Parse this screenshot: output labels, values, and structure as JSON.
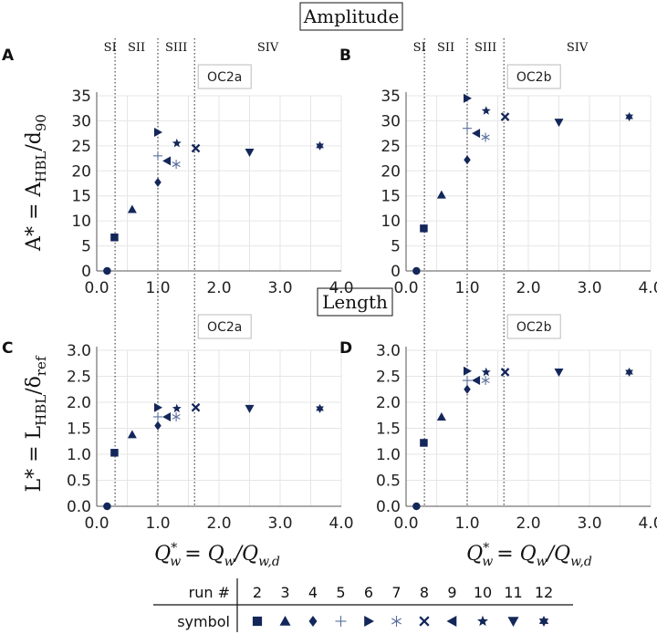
{
  "sections": {
    "amplitude": "Amplitude",
    "length": "Length"
  },
  "stage_labels": [
    "SI",
    "SII",
    "SIII",
    "SIV"
  ],
  "stage_boundaries": [
    0.3,
    1.0,
    1.6
  ],
  "colors": {
    "marker": "#14275a",
    "light_marker": "#5a6e9c",
    "grid": "#e6e6e6"
  },
  "ylabels": {
    "top_main": "A* = A",
    "top_sub": "HBL",
    "top_tail": "/d",
    "top_sub2": "90",
    "bottom_main": "L* = L",
    "bottom_sub": "HBL",
    "bottom_tail": "/δ",
    "bottom_sub2": "ref"
  },
  "xlabel": {
    "lhs": "Q",
    "lhs_sup": "*",
    "lhs_sub": "w",
    "rhs": "= Q",
    "rhs_sub": "w",
    "rhs2": "/Q",
    "rhs2_sub": "w,d"
  },
  "legend": {
    "run_label": "run #",
    "symbol_label": "symbol",
    "runs": [
      "2",
      "3",
      "4",
      "5",
      "6",
      "7",
      "8",
      "9",
      "10",
      "11",
      "12"
    ],
    "symbols": [
      "square",
      "triangle-up",
      "diamond",
      "plus",
      "triangle-right",
      "asterisk",
      "x",
      "triangle-left",
      "star",
      "triangle-down",
      "star6"
    ]
  },
  "chart_data": [
    {
      "panel": "A",
      "case": "OC2a",
      "type": "scatter",
      "xlim": [
        0.0,
        4.0
      ],
      "ylim": [
        0,
        35
      ],
      "xticks": [
        "0.0",
        "1.0",
        "2.0",
        "3.0",
        "4.0"
      ],
      "yticks": [
        "0",
        "5",
        "10",
        "15",
        "20",
        "25",
        "30",
        "35"
      ],
      "ytick_values": [
        0,
        5,
        10,
        15,
        20,
        25,
        30,
        35
      ],
      "points": [
        {
          "run": "1",
          "symbol": "circle",
          "x": 0.17,
          "y": 0.0
        },
        {
          "run": "2",
          "symbol": "square",
          "x": 0.29,
          "y": 6.7
        },
        {
          "run": "3",
          "symbol": "triangle-up",
          "x": 0.58,
          "y": 12.3
        },
        {
          "run": "4",
          "symbol": "diamond",
          "x": 1.0,
          "y": 17.7
        },
        {
          "run": "5",
          "symbol": "plus",
          "x": 1.0,
          "y": 23.0
        },
        {
          "run": "6",
          "symbol": "triangle-right",
          "x": 1.0,
          "y": 27.7
        },
        {
          "run": "7",
          "symbol": "asterisk",
          "x": 1.3,
          "y": 21.3
        },
        {
          "run": "8",
          "symbol": "x",
          "x": 1.62,
          "y": 24.5
        },
        {
          "run": "9",
          "symbol": "triangle-left",
          "x": 1.15,
          "y": 22.0
        },
        {
          "run": "10",
          "symbol": "star",
          "x": 1.31,
          "y": 25.5
        },
        {
          "run": "11",
          "symbol": "triangle-down",
          "x": 2.5,
          "y": 23.7
        },
        {
          "run": "12",
          "symbol": "star6",
          "x": 3.65,
          "y": 25.0
        }
      ]
    },
    {
      "panel": "B",
      "case": "OC2b",
      "type": "scatter",
      "xlim": [
        0.0,
        4.0
      ],
      "ylim": [
        0,
        35
      ],
      "xticks": [
        "0.0",
        "1.0",
        "2.0",
        "3.0",
        "4.0"
      ],
      "yticks": [
        "0",
        "5",
        "10",
        "15",
        "20",
        "25",
        "30",
        "35"
      ],
      "ytick_values": [
        0,
        5,
        10,
        15,
        20,
        25,
        30,
        35
      ],
      "points": [
        {
          "run": "1",
          "symbol": "circle",
          "x": 0.17,
          "y": 0.0
        },
        {
          "run": "2",
          "symbol": "square",
          "x": 0.29,
          "y": 8.5
        },
        {
          "run": "3",
          "symbol": "triangle-up",
          "x": 0.58,
          "y": 15.2
        },
        {
          "run": "4",
          "symbol": "diamond",
          "x": 1.0,
          "y": 22.2
        },
        {
          "run": "5",
          "symbol": "plus",
          "x": 1.0,
          "y": 28.5
        },
        {
          "run": "6",
          "symbol": "triangle-right",
          "x": 1.0,
          "y": 34.5
        },
        {
          "run": "7",
          "symbol": "asterisk",
          "x": 1.3,
          "y": 26.7
        },
        {
          "run": "8",
          "symbol": "x",
          "x": 1.62,
          "y": 30.8
        },
        {
          "run": "9",
          "symbol": "triangle-left",
          "x": 1.15,
          "y": 27.5
        },
        {
          "run": "10",
          "symbol": "star",
          "x": 1.31,
          "y": 32.0
        },
        {
          "run": "11",
          "symbol": "triangle-down",
          "x": 2.5,
          "y": 29.7
        },
        {
          "run": "12",
          "symbol": "star6",
          "x": 3.65,
          "y": 30.8
        }
      ]
    },
    {
      "panel": "C",
      "case": "OC2a",
      "type": "scatter",
      "xlim": [
        0.0,
        4.0
      ],
      "ylim": [
        0,
        3.0
      ],
      "xticks": [
        "0.0",
        "1.0",
        "2.0",
        "3.0",
        "4.0"
      ],
      "yticks": [
        "0.0",
        "0.5",
        "1.0",
        "1.5",
        "2.0",
        "2.5",
        "3.0"
      ],
      "ytick_values": [
        0.0,
        0.5,
        1.0,
        1.5,
        2.0,
        2.5,
        3.0
      ],
      "points": [
        {
          "run": "1",
          "symbol": "circle",
          "x": 0.17,
          "y": 0.0
        },
        {
          "run": "2",
          "symbol": "square",
          "x": 0.29,
          "y": 1.03
        },
        {
          "run": "3",
          "symbol": "triangle-up",
          "x": 0.58,
          "y": 1.38
        },
        {
          "run": "4",
          "symbol": "diamond",
          "x": 1.0,
          "y": 1.55
        },
        {
          "run": "5",
          "symbol": "plus",
          "x": 1.0,
          "y": 1.72
        },
        {
          "run": "6",
          "symbol": "triangle-right",
          "x": 1.0,
          "y": 1.9
        },
        {
          "run": "7",
          "symbol": "asterisk",
          "x": 1.3,
          "y": 1.72
        },
        {
          "run": "8",
          "symbol": "x",
          "x": 1.62,
          "y": 1.9
        },
        {
          "run": "9",
          "symbol": "triangle-left",
          "x": 1.15,
          "y": 1.72
        },
        {
          "run": "10",
          "symbol": "star",
          "x": 1.31,
          "y": 1.88
        },
        {
          "run": "11",
          "symbol": "triangle-down",
          "x": 2.5,
          "y": 1.88
        },
        {
          "run": "12",
          "symbol": "star6",
          "x": 3.65,
          "y": 1.88
        }
      ]
    },
    {
      "panel": "D",
      "case": "OC2b",
      "type": "scatter",
      "xlim": [
        0.0,
        4.0
      ],
      "ylim": [
        0,
        3.0
      ],
      "xticks": [
        "0.0",
        "1.0",
        "2.0",
        "3.0",
        "4.0"
      ],
      "yticks": [
        "0.0",
        "0.5",
        "1.0",
        "1.5",
        "2.0",
        "2.5",
        "3.0"
      ],
      "ytick_values": [
        0.0,
        0.5,
        1.0,
        1.5,
        2.0,
        2.5,
        3.0
      ],
      "points": [
        {
          "run": "1",
          "symbol": "circle",
          "x": 0.17,
          "y": 0.0
        },
        {
          "run": "2",
          "symbol": "square",
          "x": 0.29,
          "y": 1.22
        },
        {
          "run": "3",
          "symbol": "triangle-up",
          "x": 0.58,
          "y": 1.72
        },
        {
          "run": "4",
          "symbol": "diamond",
          "x": 1.0,
          "y": 2.25
        },
        {
          "run": "5",
          "symbol": "plus",
          "x": 1.0,
          "y": 2.42
        },
        {
          "run": "6",
          "symbol": "triangle-right",
          "x": 1.0,
          "y": 2.6
        },
        {
          "run": "7",
          "symbol": "asterisk",
          "x": 1.3,
          "y": 2.42
        },
        {
          "run": "8",
          "symbol": "x",
          "x": 1.62,
          "y": 2.58
        },
        {
          "run": "9",
          "symbol": "triangle-left",
          "x": 1.15,
          "y": 2.42
        },
        {
          "run": "10",
          "symbol": "star",
          "x": 1.31,
          "y": 2.58
        },
        {
          "run": "11",
          "symbol": "triangle-down",
          "x": 2.5,
          "y": 2.58
        },
        {
          "run": "12",
          "symbol": "star6",
          "x": 3.65,
          "y": 2.58
        }
      ]
    }
  ]
}
